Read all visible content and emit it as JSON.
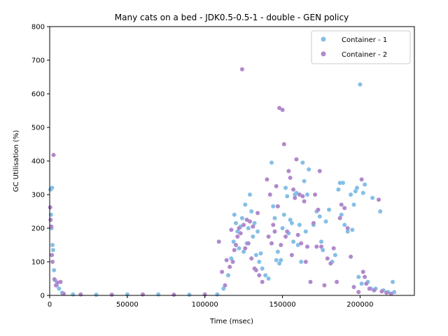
{
  "chart_data": {
    "type": "scatter",
    "title": "Many cats on a bed - JDK0.5-0.5-1 - double -  GEN policy",
    "xlabel": "Time (msec)",
    "ylabel": "GC Utilisation (%)",
    "xlim": [
      0,
      235000
    ],
    "ylim": [
      0,
      800
    ],
    "xticks": [
      0,
      50000,
      100000,
      150000,
      200000
    ],
    "yticks": [
      0,
      100,
      200,
      300,
      400,
      500,
      600,
      700,
      800
    ],
    "legend_position": "top-right",
    "grid": false,
    "series": [
      {
        "name": "Container - 1",
        "color": "#85bfe6",
        "points": [
          [
            500,
            315
          ],
          [
            800,
            240
          ],
          [
            1200,
            200
          ],
          [
            1500,
            320
          ],
          [
            1800,
            150
          ],
          [
            2200,
            135
          ],
          [
            2800,
            75
          ],
          [
            3500,
            45
          ],
          [
            4500,
            30
          ],
          [
            6000,
            20
          ],
          [
            8000,
            8
          ],
          [
            15000,
            3
          ],
          [
            30000,
            2
          ],
          [
            50000,
            3
          ],
          [
            70000,
            3
          ],
          [
            90000,
            2
          ],
          [
            108000,
            3
          ],
          [
            112000,
            20
          ],
          [
            115000,
            60
          ],
          [
            117000,
            110
          ],
          [
            118500,
            160
          ],
          [
            119000,
            240
          ],
          [
            120000,
            215
          ],
          [
            121000,
            190
          ],
          [
            122000,
            140
          ],
          [
            123000,
            205
          ],
          [
            124000,
            230
          ],
          [
            125000,
            130
          ],
          [
            126000,
            270
          ],
          [
            127000,
            155
          ],
          [
            128000,
            200
          ],
          [
            129000,
            300
          ],
          [
            130000,
            250
          ],
          [
            131000,
            175
          ],
          [
            132000,
            215
          ],
          [
            133000,
            120
          ],
          [
            134000,
            190
          ],
          [
            135000,
            100
          ],
          [
            136000,
            125
          ],
          [
            137000,
            80
          ],
          [
            139000,
            60
          ],
          [
            141000,
            50
          ],
          [
            143000,
            395
          ],
          [
            144000,
            265
          ],
          [
            145000,
            230
          ],
          [
            146000,
            105
          ],
          [
            147000,
            130
          ],
          [
            148000,
            95
          ],
          [
            149000,
            105
          ],
          [
            150000,
            200
          ],
          [
            151000,
            240
          ],
          [
            152000,
            320
          ],
          [
            153000,
            295
          ],
          [
            154000,
            185
          ],
          [
            155000,
            225
          ],
          [
            156000,
            215
          ],
          [
            157000,
            160
          ],
          [
            158000,
            300
          ],
          [
            159000,
            305
          ],
          [
            160000,
            150
          ],
          [
            161000,
            210
          ],
          [
            162000,
            100
          ],
          [
            163000,
            395
          ],
          [
            164000,
            340
          ],
          [
            165000,
            190
          ],
          [
            166000,
            300
          ],
          [
            167000,
            375
          ],
          [
            170000,
            210
          ],
          [
            172000,
            250
          ],
          [
            174000,
            235
          ],
          [
            175000,
            160
          ],
          [
            176000,
            135
          ],
          [
            178000,
            220
          ],
          [
            180000,
            255
          ],
          [
            182000,
            100
          ],
          [
            184000,
            120
          ],
          [
            186000,
            315
          ],
          [
            187000,
            335
          ],
          [
            188000,
            240
          ],
          [
            189000,
            335
          ],
          [
            190000,
            210
          ],
          [
            192000,
            190
          ],
          [
            194000,
            300
          ],
          [
            195000,
            195
          ],
          [
            196000,
            270
          ],
          [
            197000,
            310
          ],
          [
            198000,
            320
          ],
          [
            199000,
            55
          ],
          [
            200000,
            628
          ],
          [
            201000,
            35
          ],
          [
            202000,
            305
          ],
          [
            203000,
            330
          ],
          [
            205000,
            40
          ],
          [
            207000,
            20
          ],
          [
            208000,
            290
          ],
          [
            210000,
            20
          ],
          [
            213000,
            250
          ],
          [
            215000,
            15
          ],
          [
            218000,
            10
          ],
          [
            221000,
            40
          ],
          [
            222000,
            10
          ]
        ]
      },
      {
        "name": "Container - 2",
        "color": "#b089cc",
        "points": [
          [
            300,
            262
          ],
          [
            600,
            225
          ],
          [
            1000,
            205
          ],
          [
            1400,
            120
          ],
          [
            1800,
            100
          ],
          [
            2500,
            418
          ],
          [
            3000,
            48
          ],
          [
            4000,
            30
          ],
          [
            5000,
            38
          ],
          [
            7000,
            40
          ],
          [
            9000,
            5
          ],
          [
            20000,
            3
          ],
          [
            40000,
            2
          ],
          [
            60000,
            3
          ],
          [
            80000,
            2
          ],
          [
            100000,
            3
          ],
          [
            109000,
            160
          ],
          [
            111000,
            70
          ],
          [
            113000,
            30
          ],
          [
            114000,
            105
          ],
          [
            116000,
            85
          ],
          [
            117000,
            195
          ],
          [
            118000,
            100
          ],
          [
            119000,
            135
          ],
          [
            120000,
            150
          ],
          [
            121000,
            175
          ],
          [
            122000,
            200
          ],
          [
            123000,
            185
          ],
          [
            124000,
            673
          ],
          [
            125000,
            210
          ],
          [
            126000,
            140
          ],
          [
            127000,
            225
          ],
          [
            128000,
            155
          ],
          [
            129000,
            220
          ],
          [
            130000,
            110
          ],
          [
            131000,
            205
          ],
          [
            132000,
            80
          ],
          [
            133000,
            75
          ],
          [
            134000,
            245
          ],
          [
            135000,
            60
          ],
          [
            137000,
            40
          ],
          [
            140000,
            345
          ],
          [
            141000,
            175
          ],
          [
            142000,
            300
          ],
          [
            143000,
            155
          ],
          [
            144000,
            210
          ],
          [
            145000,
            190
          ],
          [
            146000,
            325
          ],
          [
            147000,
            265
          ],
          [
            148000,
            558
          ],
          [
            149000,
            150
          ],
          [
            150000,
            552
          ],
          [
            151000,
            450
          ],
          [
            152000,
            175
          ],
          [
            153000,
            190
          ],
          [
            154000,
            370
          ],
          [
            155000,
            350
          ],
          [
            156000,
            120
          ],
          [
            157000,
            315
          ],
          [
            158000,
            290
          ],
          [
            159000,
            405
          ],
          [
            160000,
            180
          ],
          [
            161000,
            300
          ],
          [
            162000,
            155
          ],
          [
            163000,
            295
          ],
          [
            164000,
            280
          ],
          [
            165000,
            100
          ],
          [
            166000,
            145
          ],
          [
            168000,
            40
          ],
          [
            170000,
            215
          ],
          [
            171000,
            300
          ],
          [
            172000,
            145
          ],
          [
            173000,
            255
          ],
          [
            174000,
            370
          ],
          [
            175000,
            145
          ],
          [
            177000,
            30
          ],
          [
            179000,
            110
          ],
          [
            181000,
            95
          ],
          [
            183000,
            140
          ],
          [
            185000,
            40
          ],
          [
            187000,
            230
          ],
          [
            188000,
            270
          ],
          [
            190000,
            260
          ],
          [
            192000,
            200
          ],
          [
            194000,
            115
          ],
          [
            196000,
            25
          ],
          [
            199000,
            10
          ],
          [
            201000,
            345
          ],
          [
            202000,
            70
          ],
          [
            203000,
            55
          ],
          [
            204000,
            35
          ],
          [
            206000,
            20
          ],
          [
            209000,
            15
          ],
          [
            212000,
            285
          ],
          [
            214000,
            12
          ],
          [
            217000,
            8
          ],
          [
            220000,
            5
          ]
        ]
      }
    ]
  }
}
